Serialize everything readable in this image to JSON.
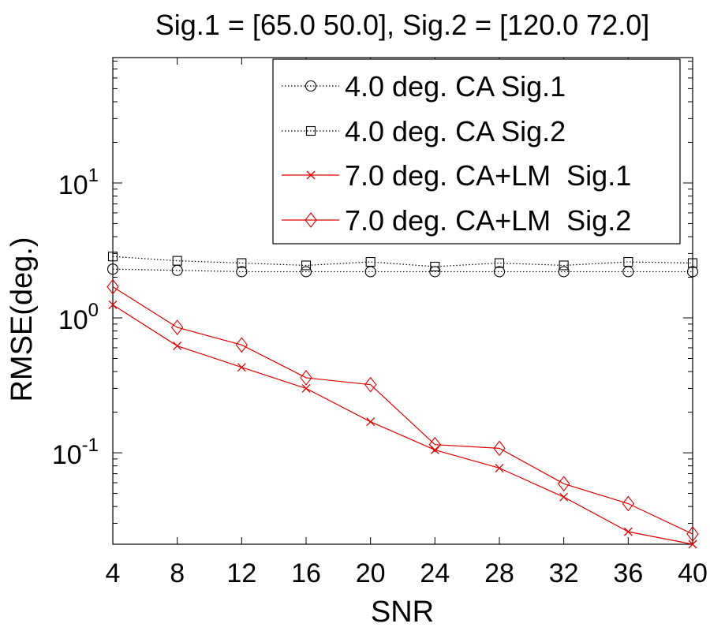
{
  "chart_data": {
    "type": "line",
    "title": "Sig.1 = [65.0 50.0], Sig.2 = [120.0 72.0]",
    "xlabel": "SNR",
    "ylabel": "RMSE(deg.)",
    "x": [
      4,
      8,
      12,
      16,
      20,
      24,
      28,
      32,
      36,
      40
    ],
    "xlim": [
      4,
      40
    ],
    "yscale": "log",
    "ylim": [
      0.021,
      85
    ],
    "y_ticks": [
      {
        "value": 0.1,
        "base": "10",
        "exp": "-1"
      },
      {
        "value": 1,
        "base": "10",
        "exp": "0"
      },
      {
        "value": 10,
        "base": "10",
        "exp": "1"
      }
    ],
    "legend_position": "top-right",
    "series": [
      {
        "name": "4.0 deg. CA Sig.1",
        "color": "#000000",
        "line": "dotted",
        "marker": "circle",
        "values": [
          2.3,
          2.25,
          2.2,
          2.2,
          2.2,
          2.2,
          2.2,
          2.2,
          2.2,
          2.2
        ]
      },
      {
        "name": "4.0 deg. CA Sig.2",
        "color": "#000000",
        "line": "dotted",
        "marker": "square",
        "values": [
          2.85,
          2.65,
          2.55,
          2.45,
          2.6,
          2.4,
          2.55,
          2.45,
          2.6,
          2.55
        ]
      },
      {
        "name": "7.0 deg. CA+LM  Sig.1",
        "color": "#e00000",
        "line": "solid",
        "marker": "x",
        "values": [
          1.25,
          0.62,
          0.43,
          0.3,
          0.17,
          0.105,
          0.077,
          0.047,
          0.026,
          0.021
        ]
      },
      {
        "name": "7.0 deg. CA+LM  Sig.2",
        "color": "#e00000",
        "line": "solid",
        "marker": "diamond",
        "values": [
          1.7,
          0.85,
          0.63,
          0.36,
          0.32,
          0.115,
          0.108,
          0.059,
          0.042,
          0.025
        ]
      }
    ]
  }
}
